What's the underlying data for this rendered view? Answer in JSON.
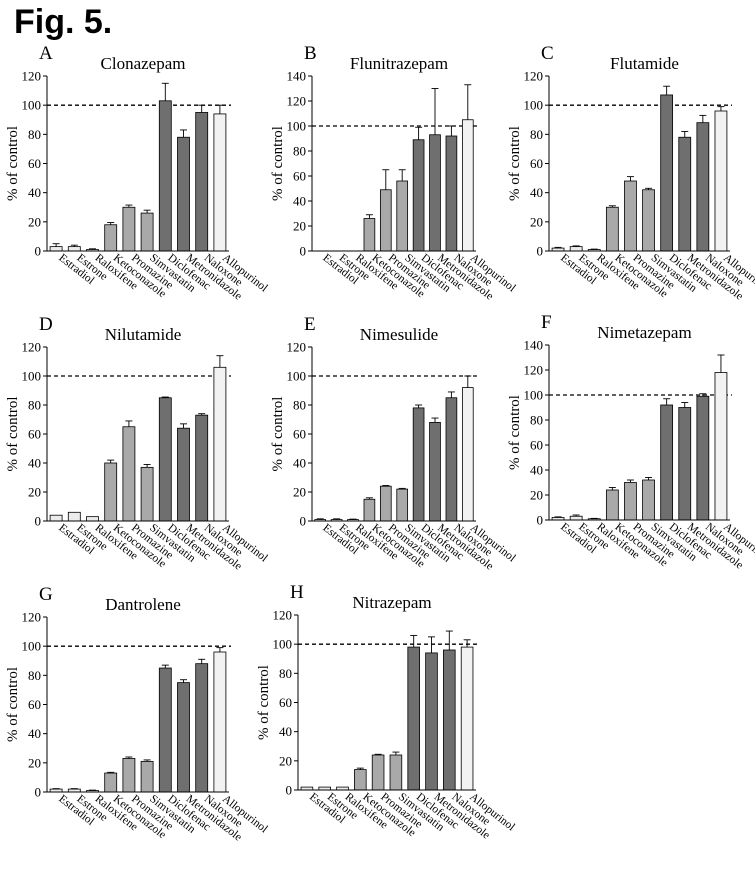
{
  "figure_title": "Fig. 5.",
  "colors": {
    "estrogen_group": "#ebebeb",
    "mid_group": "#a9a9a9",
    "high_group": "#6f6f6f",
    "allopurinol": "#f2f2f2",
    "reference_line": "#000000"
  },
  "chart_data": [
    {
      "type": "bar",
      "panel": "A",
      "title": "Clonazepam",
      "ylabel": "% of control",
      "xlabel": "",
      "categories": [
        "Estradiol",
        "Estrone",
        "Raloxifene",
        "Ketoconazole",
        "Promazine",
        "Simvastatin",
        "Diclofenac",
        "Metronidazole",
        "Naloxone",
        "Allopurinol"
      ],
      "values": [
        3,
        3,
        1,
        18,
        30,
        26,
        103,
        78,
        95,
        94
      ],
      "errors": [
        2,
        1,
        0.5,
        1.5,
        1.5,
        2,
        12,
        5,
        5,
        6
      ],
      "ylim": [
        0,
        120
      ],
      "yticks": [
        0,
        20,
        40,
        60,
        80,
        100,
        120
      ],
      "reference_line": 100,
      "grid": false
    },
    {
      "type": "bar",
      "panel": "B",
      "title": "Flunitrazepam",
      "ylabel": "% of control",
      "xlabel": "",
      "categories": [
        "Estradiol",
        "Estrone",
        "Raloxifene",
        "Ketoconazole",
        "Promazine",
        "Simvastatin",
        "Diclofenac",
        "Metronidazole",
        "Naloxone",
        "Allopurinol"
      ],
      "values": [
        0,
        0,
        0,
        26,
        49,
        56,
        89,
        93,
        92,
        105
      ],
      "errors": [
        0,
        0,
        0,
        3,
        16,
        9,
        10,
        37,
        8,
        28
      ],
      "ylim": [
        0,
        140
      ],
      "yticks": [
        0,
        20,
        40,
        60,
        80,
        100,
        120,
        140
      ],
      "reference_line": 100,
      "grid": false
    },
    {
      "type": "bar",
      "panel": "C",
      "title": "Flutamide",
      "ylabel": "% of control",
      "xlabel": "",
      "categories": [
        "Estradiol",
        "Estrone",
        "Raloxifene",
        "Ketoconazole",
        "Promazine",
        "Simvastatin",
        "Diclofenac",
        "Metronidazole",
        "Naloxone",
        "Allopurinol"
      ],
      "values": [
        2,
        3,
        1,
        30,
        48,
        42,
        107,
        78,
        88,
        96
      ],
      "errors": [
        0.5,
        0.5,
        0.3,
        1,
        3,
        1,
        6,
        4,
        5,
        3
      ],
      "ylim": [
        0,
        120
      ],
      "yticks": [
        0,
        20,
        40,
        60,
        80,
        100,
        120
      ],
      "reference_line": 100,
      "grid": false
    },
    {
      "type": "bar",
      "panel": "D",
      "title": "Nilutamide",
      "ylabel": "% of control",
      "xlabel": "",
      "categories": [
        "Estradiol",
        "Estrone",
        "Raloxifene",
        "Ketoconazole",
        "Promazine",
        "Simvastatin",
        "Diclofenac",
        "Metronidazole",
        "Naloxone",
        "Allopurinol"
      ],
      "values": [
        4,
        6,
        3,
        40,
        65,
        37,
        85,
        64,
        73,
        106
      ],
      "errors": [
        0,
        0,
        0,
        2,
        4,
        2,
        0.5,
        3,
        1,
        8
      ],
      "ylim": [
        0,
        120
      ],
      "yticks": [
        0,
        20,
        40,
        60,
        80,
        100,
        120
      ],
      "reference_line": 100,
      "grid": false
    },
    {
      "type": "bar",
      "panel": "E",
      "title": "Nimesulide",
      "ylabel": "% of control",
      "xlabel": "",
      "categories": [
        "Estradiol",
        "Estrone",
        "Raloxifene",
        "Ketoconazole",
        "Promazine",
        "Simvastatin",
        "Diclofenac",
        "Metronidazole",
        "Naloxone",
        "Allopurinol"
      ],
      "values": [
        1,
        1,
        1,
        15,
        24,
        22,
        78,
        68,
        85,
        92
      ],
      "errors": [
        0.5,
        0.5,
        0.3,
        1,
        0.5,
        0.5,
        2,
        3,
        4,
        8
      ],
      "ylim": [
        0,
        120
      ],
      "yticks": [
        0,
        20,
        40,
        60,
        80,
        100,
        120
      ],
      "reference_line": 100,
      "grid": false
    },
    {
      "type": "bar",
      "panel": "F",
      "title": "Nimetazepam",
      "ylabel": "% of control",
      "xlabel": "",
      "categories": [
        "Estradiol",
        "Estrone",
        "Raloxifene",
        "Ketoconazole",
        "Promazine",
        "Simvastatin",
        "Diclofenac",
        "Metronidazole",
        "Naloxone",
        "Allopurinol"
      ],
      "values": [
        2,
        3,
        1,
        24,
        30,
        32,
        92,
        90,
        99,
        118
      ],
      "errors": [
        0.5,
        1,
        0.3,
        2,
        2,
        2,
        5,
        4,
        2,
        14
      ],
      "ylim": [
        0,
        140
      ],
      "yticks": [
        0,
        20,
        40,
        60,
        80,
        100,
        120,
        140
      ],
      "reference_line": 100,
      "grid": false
    },
    {
      "type": "bar",
      "panel": "G",
      "title": "Dantrolene",
      "ylabel": "% of control",
      "xlabel": "",
      "categories": [
        "Estradiol",
        "Estrone",
        "Raloxifene",
        "Ketoconazole",
        "Promazine",
        "Simvastatin",
        "Diclofenac",
        "Metronidazole",
        "Naloxone",
        "Allopurinol"
      ],
      "values": [
        2,
        2,
        1,
        13,
        23,
        21,
        85,
        75,
        88,
        96
      ],
      "errors": [
        0.3,
        0.3,
        0.3,
        0.5,
        1,
        1,
        2,
        2,
        3,
        3
      ],
      "ylim": [
        0,
        120
      ],
      "yticks": [
        0,
        20,
        40,
        60,
        80,
        100,
        120
      ],
      "reference_line": 100,
      "grid": false
    },
    {
      "type": "bar",
      "panel": "H",
      "title": "Nitrazepam",
      "ylabel": "% of control",
      "xlabel": "",
      "categories": [
        "Estradiol",
        "Estrone",
        "Raloxifene",
        "Ketoconazole",
        "Promazine",
        "Simvastatin",
        "Diclofenac",
        "Metronidazole",
        "Naloxone",
        "Allopurinol"
      ],
      "values": [
        2,
        2,
        2,
        14,
        24,
        24,
        98,
        94,
        96,
        98
      ],
      "errors": [
        0,
        0,
        0,
        1,
        0.5,
        2,
        8,
        11,
        13,
        5
      ],
      "ylim": [
        0,
        120
      ],
      "yticks": [
        0,
        20,
        40,
        60,
        80,
        100,
        120
      ],
      "reference_line": 100,
      "grid": false
    }
  ]
}
